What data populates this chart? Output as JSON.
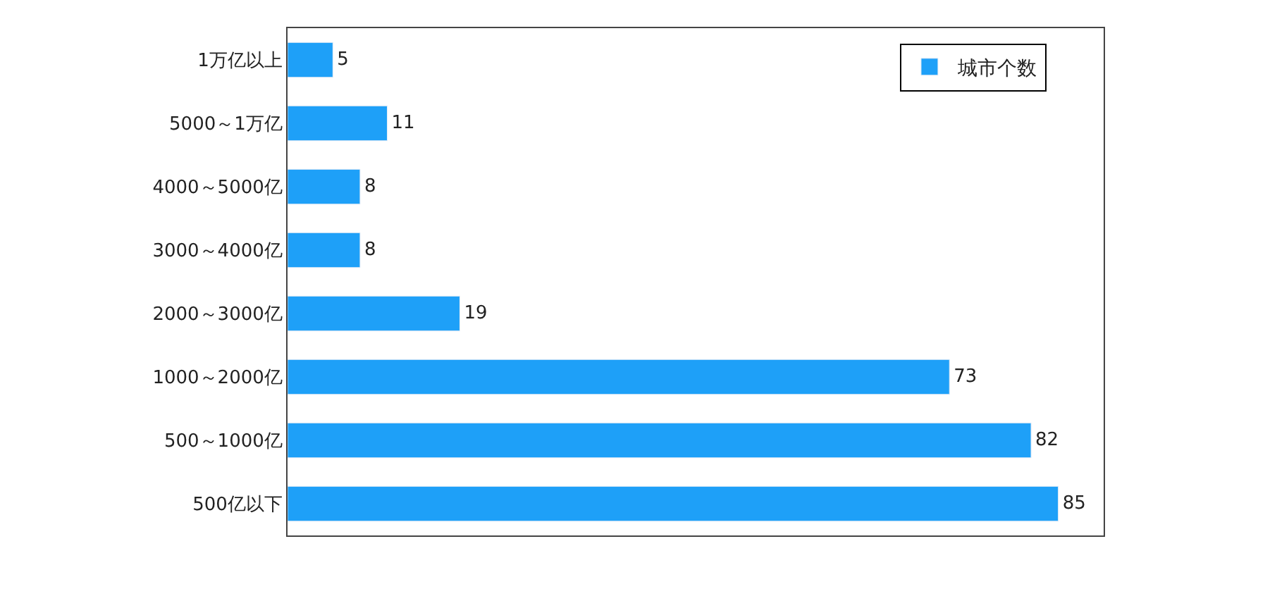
{
  "chart_data": {
    "type": "bar",
    "orientation": "horizontal",
    "categories": [
      "1万亿以上",
      "5000～1万亿",
      "4000～5000亿",
      "3000～4000亿",
      "2000～3000亿",
      "1000～2000亿",
      "500～1000亿",
      "500亿以下"
    ],
    "series": [
      {
        "name": "城市个数",
        "color": "#1ea0f8",
        "values": [
          5,
          11,
          8,
          8,
          19,
          73,
          82,
          85
        ]
      }
    ],
    "xlim": [
      0,
      90
    ],
    "data_labels": true,
    "legend": "top right",
    "tick_labels": "y"
  }
}
